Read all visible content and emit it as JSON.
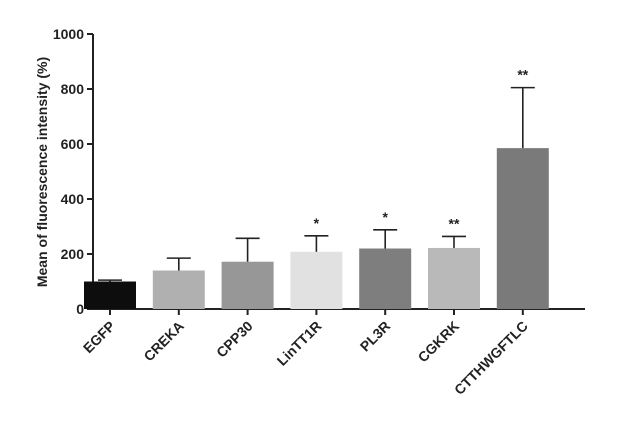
{
  "chart_data": {
    "type": "bar",
    "ylabel": "Mean of fluorescence intensity (%)",
    "ylim": [
      0,
      1000
    ],
    "yticks": [
      0,
      200,
      400,
      600,
      800,
      1000
    ],
    "grid": false,
    "categories": [
      "EGFP",
      "CREKA",
      "CPP30",
      "LinTT1R",
      "PL3R",
      "CGKRK",
      "CTTHWGFTLC"
    ],
    "values": [
      100,
      140,
      172,
      208,
      220,
      222,
      585
    ],
    "errors": [
      5,
      45,
      85,
      58,
      68,
      42,
      220
    ],
    "significance": [
      "",
      "",
      "",
      "*",
      "*",
      "**",
      "**"
    ],
    "colors": [
      "#0d0d0d",
      "#b0b0b0",
      "#979797",
      "#e1e1e1",
      "#7e7e7e",
      "#b9b9b9",
      "#7a7a7a"
    ]
  }
}
